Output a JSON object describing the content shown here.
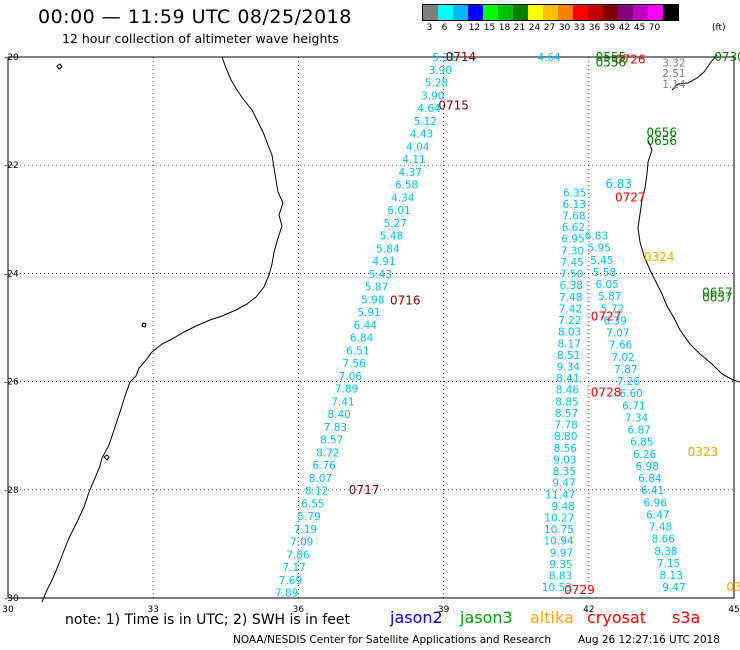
{
  "header": {
    "title": "00:00 — 11:59 UTC 08/25/2018",
    "subtitle": "12 hour collection of altimeter wave heights"
  },
  "color_scale": {
    "unit": "(ft)",
    "steps": [
      {
        "label": "3",
        "color": "#7f7f7f"
      },
      {
        "label": "6",
        "color": "#00ffff"
      },
      {
        "label": "9",
        "color": "#00b4ff"
      },
      {
        "label": "12",
        "color": "#0000ff"
      },
      {
        "label": "15",
        "color": "#00ff00"
      },
      {
        "label": "18",
        "color": "#00c000"
      },
      {
        "label": "21",
        "color": "#008000"
      },
      {
        "label": "24",
        "color": "#ffff00"
      },
      {
        "label": "27",
        "color": "#ffc000"
      },
      {
        "label": "30",
        "color": "#ff8000"
      },
      {
        "label": "33",
        "color": "#ff0000"
      },
      {
        "label": "36",
        "color": "#c00000"
      },
      {
        "label": "39",
        "color": "#800000"
      },
      {
        "label": "42",
        "color": "#800080"
      },
      {
        "label": "45",
        "color": "#c000c0"
      },
      {
        "label": "70",
        "color": "#ff00ff"
      },
      {
        "label": "",
        "color": "#000000"
      }
    ]
  },
  "map": {
    "lon_ticks": [
      "30",
      "33",
      "36",
      "39",
      "42",
      "45"
    ],
    "lat_ticks": [
      "-20",
      "-22",
      "-24",
      "-26",
      "-28",
      "-30"
    ],
    "tracks": [
      {
        "id": "west",
        "color": "#00bfff",
        "start_lon": 39.25,
        "start_lat": -20.0,
        "end_lon": 36.0,
        "end_lat": -29.9,
        "values": [
          "5.31",
          "3.90",
          "5.28",
          "3.90",
          "4.64",
          "5.12",
          "4.43",
          "4.04",
          "4.11",
          "4.37",
          "6.58",
          "4.34",
          "6.01",
          "5.27",
          "5.48",
          "5.84",
          "4.91",
          "5.43",
          "5.87",
          "5.98",
          "5.91",
          "6.44",
          "6.84",
          "6.51",
          "7.56",
          "7.06",
          "7.89",
          "7.41",
          "8.40",
          "7.83",
          "8.57",
          "8.72",
          "6.76",
          "8.07",
          "8.12",
          "6.55",
          "5.79",
          "7.19",
          "7.09",
          "7.86",
          "7.17",
          "7.69",
          "7.89"
        ]
      },
      {
        "id": "middle",
        "color": "#00bfff",
        "start_lon": 41.95,
        "start_lat": -22.5,
        "end_lon": 41.65,
        "end_lat": -29.8,
        "values": [
          "6.35",
          "6.13",
          "7.68",
          "6.62",
          "6.95",
          "7.30",
          "7.45",
          "7.50",
          "6.38",
          "7.48",
          "7.42",
          "7.22",
          "8.03",
          "8.17",
          "8.51",
          "9.34",
          "8.41",
          "8.46",
          "8.85",
          "8.57",
          "7.78",
          "8.80",
          "8.56",
          "9.03",
          "8.35",
          "9.47",
          "11.47",
          "9.48",
          "10.27",
          "10.75",
          "10.94",
          "9.97",
          "9.35",
          "8.83",
          "10.53"
        ]
      },
      {
        "id": "east",
        "color": "#00bfff",
        "start_lon": 42.4,
        "start_lat": -23.3,
        "end_lon": 44.0,
        "end_lat": -29.8,
        "values": [
          "6.83",
          "5.95",
          "5.45",
          "5.58",
          "6.05",
          "5.87",
          "5.72",
          "6.39",
          "7.07",
          "7.66",
          "7.02",
          "7.87",
          "7.26",
          "6.60",
          "6.71",
          "7.34",
          "6.87",
          "6.85",
          "6.26",
          "6.98",
          "6.84",
          "6.41",
          "6.96",
          "6.47",
          "7.48",
          "8.66",
          "8.38",
          "7.15",
          "8.13",
          "9.47"
        ]
      },
      {
        "id": "northeast",
        "color": "#808080",
        "start_lon": 44.0,
        "start_lat": -20.1,
        "end_lon": 44.0,
        "end_lat": -20.5,
        "values": [
          "3.32",
          "2.51",
          "1.14"
        ]
      },
      {
        "id": "ne-top",
        "color": "#00bfff",
        "start_lon": 41.42,
        "start_lat": -20.0,
        "end_lon": 41.42,
        "end_lat": -20.0,
        "values": [
          "4.64"
        ]
      }
    ],
    "time_labels": [
      {
        "text": "0714",
        "lon": 39.0,
        "lat": -20.0,
        "color": "#800000"
      },
      {
        "text": "0715",
        "lon": 38.85,
        "lat": -20.9,
        "color": "#800000"
      },
      {
        "text": "0716",
        "lon": 37.85,
        "lat": -24.5,
        "color": "#800000"
      },
      {
        "text": "0717",
        "lon": 37.0,
        "lat": -28.0,
        "color": "#800000"
      },
      {
        "text": "0727",
        "lon": 42.5,
        "lat": -22.6,
        "color": "#ff0000"
      },
      {
        "text": "0727",
        "lon": 42.0,
        "lat": -24.8,
        "color": "#ff0000"
      },
      {
        "text": "0728",
        "lon": 42.0,
        "lat": -26.2,
        "color": "#ff0000"
      },
      {
        "text": "0729",
        "lon": 41.45,
        "lat": -29.85,
        "color": "#ff0000"
      },
      {
        "text": "0726",
        "lon": 42.5,
        "lat": -20.05,
        "color": "#ff0000"
      },
      {
        "text": "0555",
        "lon": 42.1,
        "lat": -20.0,
        "color": "#008000"
      },
      {
        "text": "0556",
        "lon": 42.1,
        "lat": -20.1,
        "color": "#008000"
      },
      {
        "text": "0656",
        "lon": 43.15,
        "lat": -21.4,
        "color": "#008000"
      },
      {
        "text": "0656",
        "lon": 43.15,
        "lat": -21.55,
        "color": "#008000"
      },
      {
        "text": "0657",
        "lon": 44.3,
        "lat": -24.35,
        "color": "#008000"
      },
      {
        "text": "0657",
        "lon": 44.3,
        "lat": -24.45,
        "color": "#008000"
      },
      {
        "text": "0730",
        "lon": 44.55,
        "lat": -20.0,
        "color": "#008000"
      },
      {
        "text": "0324",
        "lon": 43.1,
        "lat": -23.7,
        "color": "#ffa500"
      },
      {
        "text": "0323",
        "lon": 44.0,
        "lat": -27.3,
        "color": "#ffa500"
      },
      {
        "text": "03",
        "lon": 44.8,
        "lat": -29.8,
        "color": "#ffa500"
      },
      {
        "text": "6.83",
        "lon": 42.3,
        "lat": -22.35,
        "color": "#00bfff"
      }
    ]
  },
  "footer": {
    "note": "note:  1)  Time is in UTC;  2)  SWH is in feet",
    "legend": [
      {
        "name": "jason2",
        "color": "#0000ff",
        "left": 390
      },
      {
        "name": "jason3",
        "color": "#00a000",
        "left": 460
      },
      {
        "name": "altika",
        "color": "#ffa500",
        "left": 530
      },
      {
        "name": "cryosat",
        "color": "#ff0000",
        "left": 587
      },
      {
        "name": "s3a",
        "color": "#ff0000",
        "left": 672
      }
    ],
    "credit": "NOAA/NESDIS Center for Satellite Applications and Research",
    "generated": "Aug 26 12:27:16 UTC 2018"
  }
}
